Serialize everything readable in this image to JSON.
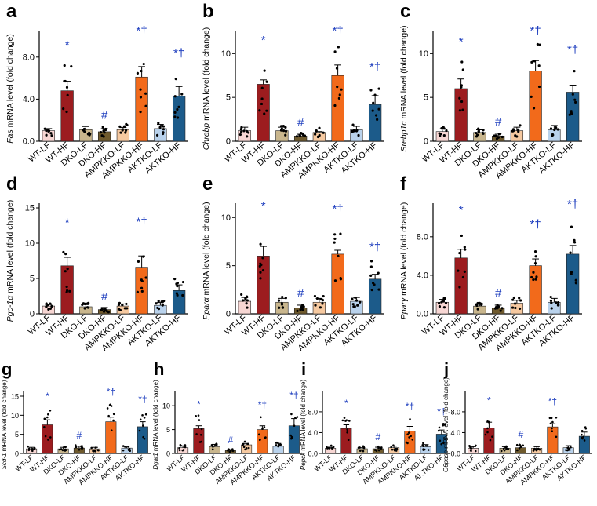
{
  "colors": {
    "WT-LF": "#f7d6d3",
    "WT-HF": "#9c1c1f",
    "DKO-LF": "#c9b68d",
    "DKO-HF": "#6f5a2d",
    "AMPKKO-LF": "#f6c9a0",
    "AMPKKO-HF": "#f26a1b",
    "AKTKO-LF": "#b9d2ec",
    "AKTKO-HF": "#1c5b8a",
    "sig": "#1f3fbf"
  },
  "categories": [
    "WT-LF",
    "WT-HF",
    "DKO-LF",
    "DKO-HF",
    "AMPKKO-LF",
    "AMPKKO-HF",
    "AKTKO-LF",
    "AKTKO-HF"
  ],
  "chart_data": [
    {
      "panel": "a",
      "type": "bar",
      "gene": "Fas",
      "ylabel_rest": "mRNA level (fold change)",
      "ylim": [
        0,
        10
      ],
      "ticks": [
        "0.0",
        "4.0",
        "8.0"
      ],
      "tick_values": [
        0,
        4,
        8
      ],
      "categories": [
        "WT-LF",
        "WT-HF",
        "DKO-LF",
        "DKO-HF",
        "AMPKKO-LF",
        "AMPKKO-HF",
        "AKTKO-LF",
        "AKTKO-HF"
      ],
      "values": [
        1.0,
        4.8,
        1.1,
        0.9,
        1.1,
        6.1,
        1.2,
        4.3
      ],
      "errors": [
        0.2,
        0.9,
        0.3,
        0.3,
        0.2,
        1.0,
        0.4,
        0.9
      ],
      "annotations": [
        "",
        "*",
        "",
        "#",
        "",
        "*†",
        "",
        "*†"
      ]
    },
    {
      "panel": "b",
      "type": "bar",
      "gene": "Chrebp",
      "ylabel_rest": "mRNA level (fold change)",
      "ylim": [
        0,
        12
      ],
      "ticks": [
        "0",
        "5",
        "10"
      ],
      "tick_values": [
        0,
        5,
        10
      ],
      "categories": [
        "WT-LF",
        "WT-HF",
        "DKO-LF",
        "DKO-HF",
        "AMPKKO-LF",
        "AMPKKO-HF",
        "AKTKO-LF",
        "AKTKO-HF"
      ],
      "values": [
        1.2,
        6.5,
        1.2,
        0.6,
        1.0,
        7.5,
        1.3,
        4.2
      ],
      "errors": [
        0.4,
        0.5,
        0.4,
        0.2,
        0.1,
        1.2,
        0.4,
        1.0
      ],
      "annotations": [
        "",
        "*",
        "",
        "#",
        "",
        "*†",
        "",
        "*†"
      ]
    },
    {
      "panel": "c",
      "type": "bar",
      "gene": "Srebp1c",
      "ylabel_rest": "mRNA level (fold change)",
      "ylim": [
        0,
        12
      ],
      "ticks": [
        "0",
        "5",
        "10"
      ],
      "tick_values": [
        0,
        5,
        10
      ],
      "categories": [
        "WT-LF",
        "WT-HF",
        "DKO-LF",
        "DKO-HF",
        "AMPKKO-LF",
        "AMPKKO-HF",
        "AKTKO-LF",
        "AKTKO-HF"
      ],
      "values": [
        1.1,
        6.0,
        1.0,
        0.6,
        1.2,
        8.0,
        1.3,
        5.6
      ],
      "errors": [
        0.3,
        1.1,
        0.3,
        0.3,
        0.4,
        1.2,
        0.5,
        0.8
      ],
      "annotations": [
        "",
        "*",
        "",
        "#",
        "",
        "*†",
        "",
        "*†"
      ]
    },
    {
      "panel": "d",
      "type": "bar",
      "gene": "Pgc-1α",
      "ylabel_rest": "mRNA level (fold change)",
      "ylim": [
        0,
        15
      ],
      "ticks": [
        "0",
        "5",
        "10",
        "15"
      ],
      "tick_values": [
        0,
        5,
        10,
        15
      ],
      "categories": [
        "WT-LF",
        "WT-HF",
        "DKO-LF",
        "DKO-HF",
        "AMPKKO-LF",
        "AMPKKO-HF",
        "AKTKO-LF",
        "AKTKO-HF"
      ],
      "values": [
        1.1,
        6.8,
        1.0,
        0.6,
        1.1,
        6.6,
        1.2,
        3.3
      ],
      "errors": [
        0.2,
        1.2,
        0.3,
        0.3,
        0.3,
        1.6,
        0.4,
        0.8
      ],
      "annotations": [
        "",
        "*",
        "",
        "#",
        "",
        "*†",
        "",
        ""
      ]
    },
    {
      "panel": "e",
      "type": "bar",
      "gene": "Pparα",
      "ylabel_rest": "mRNA level (fold change)",
      "ylim": [
        0,
        11
      ],
      "ticks": [
        "0",
        "5",
        "10"
      ],
      "tick_values": [
        0,
        5,
        10
      ],
      "categories": [
        "WT-LF",
        "WT-HF",
        "DKO-LF",
        "DKO-HF",
        "AMPKKO-LF",
        "AMPKKO-HF",
        "AKTKO-LF",
        "AKTKO-HF"
      ],
      "values": [
        1.3,
        6.0,
        1.2,
        0.6,
        1.2,
        6.2,
        1.3,
        3.6
      ],
      "errors": [
        0.4,
        1.0,
        0.4,
        0.3,
        0.4,
        0.4,
        0.4,
        0.5
      ],
      "annotations": [
        "",
        "*",
        "",
        "#",
        "",
        "*†",
        "",
        "*†"
      ]
    },
    {
      "panel": "f",
      "type": "bar",
      "gene": "Pparγ",
      "ylabel_rest": "mRNA level (fold change)",
      "ylim": [
        0,
        11
      ],
      "ticks": [
        "0.0",
        "4.0",
        "8.0"
      ],
      "tick_values": [
        0,
        4,
        8
      ],
      "categories": [
        "WT-LF",
        "WT-HF",
        "DKO-LF",
        "DKO-HF",
        "AMPKKO-LF",
        "AMPKKO-HF",
        "AKTKO-LF",
        "AKTKO-HF"
      ],
      "values": [
        1.2,
        5.8,
        0.8,
        0.6,
        1.1,
        5.0,
        1.2,
        6.2
      ],
      "errors": [
        0.3,
        0.9,
        0.2,
        0.3,
        0.3,
        0.7,
        0.4,
        0.9
      ],
      "annotations": [
        "",
        "*",
        "",
        "#",
        "",
        "*†",
        "",
        "*†"
      ]
    },
    {
      "panel": "g",
      "type": "bar",
      "gene": "Scd-1",
      "ylabel_rest": "mRNA level (fold change)",
      "ylim": [
        0,
        15
      ],
      "ticks": [
        "0",
        "5",
        "10",
        "15"
      ],
      "tick_values": [
        0,
        5,
        10,
        15
      ],
      "categories": [
        "WT-LF",
        "WT-HF",
        "DKO-LF",
        "DKO-HF",
        "AMPKKO-LF",
        "AMPKKO-HF",
        "AKTKO-LF",
        "AKTKO-HF"
      ],
      "values": [
        1.2,
        7.5,
        1.2,
        1.4,
        1.2,
        8.3,
        1.4,
        7.0
      ],
      "errors": [
        0.4,
        1.3,
        0.4,
        0.5,
        0.4,
        1.2,
        0.5,
        1.3
      ],
      "annotations": [
        "",
        "*",
        "",
        "#",
        "",
        "*†",
        "",
        "*†"
      ]
    },
    {
      "panel": "h",
      "type": "bar",
      "gene": "Dgat1",
      "ylabel_rest": "mRNA level (fold change)",
      "ylim": [
        0,
        12
      ],
      "ticks": [
        "0",
        "5",
        "10"
      ],
      "tick_values": [
        0,
        5,
        10
      ],
      "categories": [
        "WT-LF",
        "WT-HF",
        "DKO-LF",
        "DKO-HF",
        "AMPKKO-LF",
        "AMPKKO-HF",
        "AKTKO-LF",
        "AKTKO-HF"
      ],
      "values": [
        1.2,
        5.2,
        1.4,
        0.6,
        1.8,
        5.0,
        1.5,
        5.8
      ],
      "errors": [
        0.4,
        0.6,
        0.5,
        0.2,
        0.3,
        0.8,
        0.6,
        1.5
      ],
      "annotations": [
        "",
        "*",
        "",
        "#",
        "",
        "*†",
        "",
        "*†"
      ]
    },
    {
      "panel": "i",
      "type": "bar",
      "gene": "Pepck",
      "ylabel_rest": "mRNA level (fold change)",
      "ylim": [
        0,
        11
      ],
      "ticks": [
        "0.0",
        "4.0",
        "8.0"
      ],
      "tick_values": [
        0,
        4,
        8
      ],
      "categories": [
        "WT-LF",
        "WT-HF",
        "DKO-LF",
        "DKO-HF",
        "AMPKKO-LF",
        "AMPKKO-HF",
        "AKTKO-LF",
        "AKTKO-HF"
      ],
      "values": [
        1.0,
        4.8,
        0.9,
        0.9,
        1.1,
        4.3,
        1.3,
        3.7
      ],
      "errors": [
        0.2,
        0.7,
        0.2,
        0.3,
        0.3,
        0.9,
        0.4,
        0.8
      ],
      "annotations": [
        "",
        "*",
        "",
        "#",
        "",
        "*†",
        "",
        "*†"
      ]
    },
    {
      "panel": "j",
      "type": "bar",
      "gene": "G6pase",
      "ylabel_rest": "mRNA level (fold change)",
      "ylim": [
        0,
        11
      ],
      "ticks": [
        "0.0",
        "4.0",
        "8.0"
      ],
      "tick_values": [
        0,
        4,
        8
      ],
      "categories": [
        "WT-LF",
        "WT-HF",
        "DKO-LF",
        "DKO-HF",
        "AMPKKO-LF",
        "AMPKKO-HF",
        "AKTKO-LF",
        "AKTKO-HF"
      ],
      "values": [
        1.0,
        4.9,
        1.0,
        1.1,
        1.0,
        5.1,
        1.1,
        3.3
      ],
      "errors": [
        0.3,
        1.1,
        0.3,
        0.4,
        0.3,
        0.6,
        0.4,
        0.8
      ],
      "annotations": [
        "",
        "*",
        "",
        "#",
        "",
        "*†",
        "",
        ""
      ]
    }
  ]
}
